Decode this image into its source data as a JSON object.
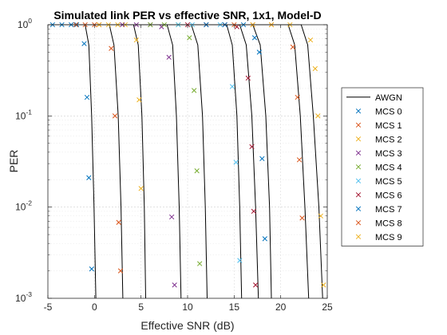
{
  "chart_data": {
    "type": "scatter",
    "title": "Simulated link PER vs effective SNR, 1x1, Model-D",
    "xlabel": "Effective SNR (dB)",
    "ylabel": "PER",
    "xlim": [
      -5,
      25
    ],
    "ylim": [
      0.001,
      1
    ],
    "yscale": "log",
    "xticks": [
      "-5",
      "0",
      "5",
      "10",
      "15",
      "20",
      "25"
    ],
    "yticks": [
      {
        "base": "10",
        "exp": "-3",
        "value": 0.001
      },
      {
        "base": "10",
        "exp": "-2",
        "value": 0.01
      },
      {
        "base": "10",
        "exp": "-1",
        "value": 0.1
      },
      {
        "base": "10",
        "exp": "0",
        "value": 1
      }
    ],
    "grid": true,
    "legend_position": "right",
    "awgn": {
      "name": "AWGN",
      "color": "#000000",
      "curves": [
        {
          "x": [
            -1.0,
            -0.6,
            -0.3,
            -0.05,
            0.15
          ],
          "y": [
            1,
            0.6,
            0.1,
            0.01,
            0.001
          ]
        },
        {
          "x": [
            1.6,
            2.1,
            2.55,
            2.85,
            3.05
          ],
          "y": [
            1,
            0.6,
            0.1,
            0.01,
            0.001
          ]
        },
        {
          "x": [
            4.2,
            4.7,
            5.1,
            5.35,
            5.5
          ],
          "y": [
            1,
            0.6,
            0.1,
            0.01,
            0.001
          ]
        },
        {
          "x": [
            7.8,
            8.4,
            8.8,
            9.1,
            9.3
          ],
          "y": [
            1,
            0.6,
            0.1,
            0.01,
            0.001
          ]
        },
        {
          "x": [
            10.4,
            11.1,
            11.6,
            11.9,
            12.1
          ],
          "y": [
            1,
            0.6,
            0.1,
            0.01,
            0.001
          ]
        },
        {
          "x": [
            14.2,
            14.8,
            15.3,
            15.6,
            15.8
          ],
          "y": [
            1,
            0.6,
            0.1,
            0.01,
            0.001
          ]
        },
        {
          "x": [
            15.6,
            16.3,
            16.9,
            17.3,
            17.6
          ],
          "y": [
            1,
            0.6,
            0.1,
            0.01,
            0.001
          ]
        },
        {
          "x": [
            17.0,
            17.8,
            18.4,
            18.8,
            19.0
          ],
          "y": [
            1,
            0.6,
            0.1,
            0.01,
            0.001
          ]
        },
        {
          "x": [
            20.8,
            21.5,
            22.1,
            22.6,
            23.0
          ],
          "y": [
            1,
            0.6,
            0.1,
            0.01,
            0.001
          ]
        },
        {
          "x": [
            22.2,
            22.9,
            23.5,
            24.1,
            24.5
          ],
          "y": [
            1,
            0.6,
            0.1,
            0.01,
            0.001
          ]
        }
      ]
    },
    "series": [
      {
        "name": "MCS 0",
        "color": "#0072BD",
        "x": [
          -4.5,
          -3.5,
          -2.5,
          -1.9,
          -1.1,
          -0.8,
          -0.6,
          -0.3
        ],
        "y": [
          1,
          1,
          1,
          1,
          0.62,
          0.16,
          0.021,
          0.0021
        ]
      },
      {
        "name": "MCS 1",
        "color": "#D95319",
        "x": [
          -2,
          -1,
          0,
          0.5,
          1.8,
          2.2,
          2.6,
          2.8
        ],
        "y": [
          1,
          1,
          1,
          1,
          0.55,
          0.1,
          0.0068,
          0.002
        ]
      },
      {
        "name": "MCS 2",
        "color": "#EDB120",
        "x": [
          0.5,
          1.5,
          2.5,
          3.3,
          4.5,
          4.8,
          5.0
        ],
        "y": [
          1,
          1,
          1,
          1,
          0.68,
          0.15,
          0.016
        ]
      },
      {
        "name": "MCS 3",
        "color": "#7E2F8E",
        "x": [
          3,
          4.5,
          6,
          7.2,
          8.0,
          8.3,
          8.6
        ],
        "y": [
          1,
          1,
          1,
          0.95,
          0.44,
          0.0078,
          0.0014
        ]
      },
      {
        "name": "MCS 4",
        "color": "#77AC30",
        "x": [
          6,
          7.5,
          9,
          10.2,
          10.7,
          11.0,
          11.3
        ],
        "y": [
          1,
          1,
          1,
          0.72,
          0.19,
          0.025,
          0.0024
        ]
      },
      {
        "name": "MCS 5",
        "color": "#4DBEEE",
        "x": [
          9,
          10.5,
          12,
          13.5,
          14.8,
          15.2,
          15.6
        ],
        "y": [
          1,
          1,
          1,
          1,
          0.21,
          0.031,
          0.0026
        ]
      },
      {
        "name": "MCS 6",
        "color": "#A2142F",
        "x": [
          10,
          12,
          14,
          15.3,
          16.5,
          16.9,
          17.1,
          17.3
        ],
        "y": [
          1,
          1,
          1,
          0.95,
          0.26,
          0.046,
          0.009,
          0.0014
        ]
      },
      {
        "name": "MCS 7",
        "color": "#0072BD",
        "x": [
          12,
          14,
          16,
          17.2,
          17.7,
          18.0,
          18.3
        ],
        "y": [
          1,
          1,
          1,
          0.72,
          0.5,
          0.034,
          0.0045
        ]
      },
      {
        "name": "MCS 8",
        "color": "#D95319",
        "x": [
          15,
          17,
          19,
          21.3,
          21.8,
          22.0,
          22.3
        ],
        "y": [
          1,
          1,
          1,
          0.57,
          0.16,
          0.033,
          0.0076
        ]
      },
      {
        "name": "MCS 9",
        "color": "#EDB120",
        "x": [
          17,
          19,
          21,
          23.2,
          23.7,
          24.0,
          24.3,
          24.6
        ],
        "y": [
          1,
          1,
          1,
          0.68,
          0.33,
          0.1,
          0.008,
          0.0014
        ]
      }
    ]
  }
}
